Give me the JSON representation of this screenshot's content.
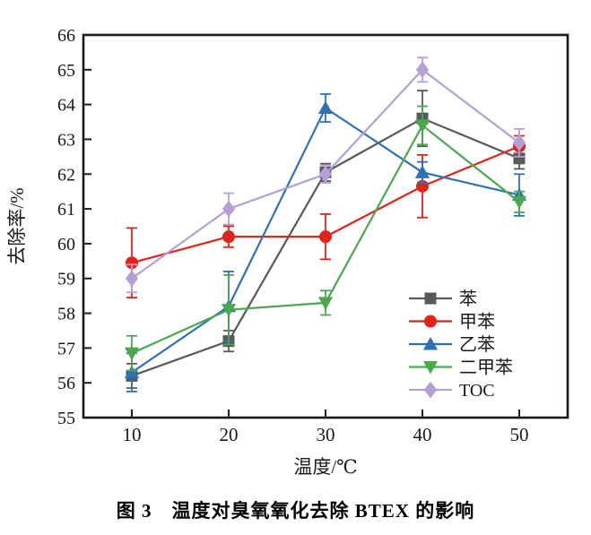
{
  "figure": {
    "caption": "图 3　温度对臭氧氧化去除 BTEX 的影响"
  },
  "chart_data": {
    "type": "line",
    "title": "",
    "xlabel": "温度/℃",
    "ylabel": "去除率/%",
    "x": [
      10,
      20,
      30,
      40,
      50
    ],
    "x_ticks": [
      10,
      20,
      30,
      40,
      50
    ],
    "y_ticks": [
      55,
      56,
      57,
      58,
      59,
      60,
      61,
      62,
      63,
      64,
      65,
      66
    ],
    "xlim": [
      5,
      55
    ],
    "ylim": [
      55,
      66
    ],
    "grid": false,
    "legend_position": "inside-lower-right",
    "error_bars": true,
    "frame_color": "#1a1a1a",
    "series": [
      {
        "name": "苯",
        "marker": "square",
        "color": "#595959",
        "values": [
          56.2,
          57.2,
          62.05,
          63.6,
          62.45
        ],
        "errors": [
          0.35,
          0.3,
          0.25,
          0.8,
          0.3
        ]
      },
      {
        "name": "甲苯",
        "marker": "circle",
        "color": "#e2231a",
        "values": [
          59.45,
          60.2,
          60.2,
          61.65,
          62.8
        ],
        "errors": [
          1.0,
          0.3,
          0.65,
          0.9,
          0.3
        ]
      },
      {
        "name": "乙苯",
        "marker": "triangle-up",
        "color": "#2f71b8",
        "values": [
          56.3,
          58.2,
          63.9,
          62.05,
          61.4
        ],
        "errors": [
          0.55,
          1.0,
          0.4,
          0.3,
          0.6
        ]
      },
      {
        "name": "二甲苯",
        "marker": "triangle-down",
        "color": "#4aa84e",
        "values": [
          56.85,
          58.1,
          58.3,
          63.4,
          61.2
        ],
        "errors": [
          0.5,
          1.0,
          0.35,
          0.55,
          0.3
        ]
      },
      {
        "name": "TOC",
        "marker": "diamond",
        "color": "#b49fd6",
        "values": [
          59.0,
          61.0,
          62.0,
          65.0,
          62.9
        ],
        "errors": [
          0.4,
          0.45,
          0.25,
          0.35,
          0.4
        ]
      }
    ]
  }
}
